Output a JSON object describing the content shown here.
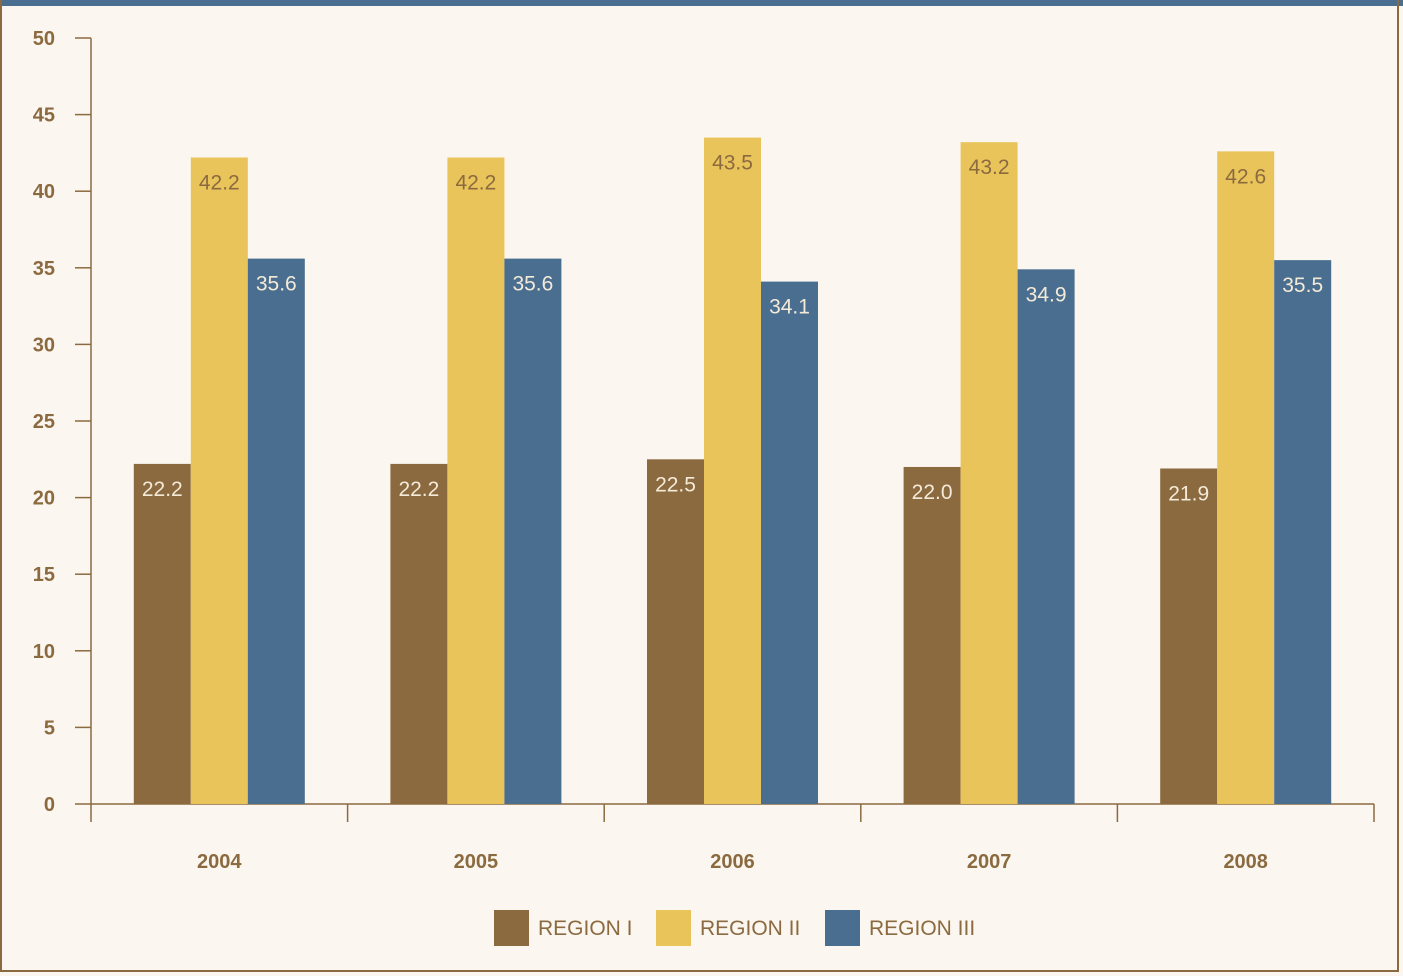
{
  "chart_data": {
    "type": "bar",
    "categories": [
      "2004",
      "2005",
      "2006",
      "2007",
      "2008"
    ],
    "series": [
      {
        "name": "REGION I",
        "values": [
          22.2,
          22.2,
          22.5,
          22.0,
          21.9
        ],
        "labels": [
          "22.2",
          "22.2",
          "22.5",
          "22.0",
          "21.9"
        ],
        "color": "#8b6a40",
        "label_color": "#f4ead8"
      },
      {
        "name": "REGION II",
        "values": [
          42.2,
          42.2,
          43.5,
          43.2,
          42.6
        ],
        "labels": [
          "42.2",
          "42.2",
          "43.5",
          "43.2",
          "42.6"
        ],
        "color": "#e9c45a",
        "label_color": "#8b6a40"
      },
      {
        "name": "REGION III",
        "values": [
          35.6,
          35.6,
          34.1,
          34.9,
          35.5
        ],
        "labels": [
          "35.6",
          "35.6",
          "34.1",
          "34.9",
          "35.5"
        ],
        "color": "#4a6e8f",
        "label_color": "#f4ead8"
      }
    ],
    "ylim": [
      0,
      50
    ],
    "yticks": [
      "0",
      "5",
      "10",
      "15",
      "20",
      "25",
      "30",
      "35",
      "40",
      "45",
      "50"
    ],
    "grid": false,
    "legend_position": "bottom-center",
    "axis_color": "#8b6a40",
    "background": "#fbf6ef",
    "frame_color": "#8b6a40",
    "top_bar_color": "#4a6e8f"
  }
}
